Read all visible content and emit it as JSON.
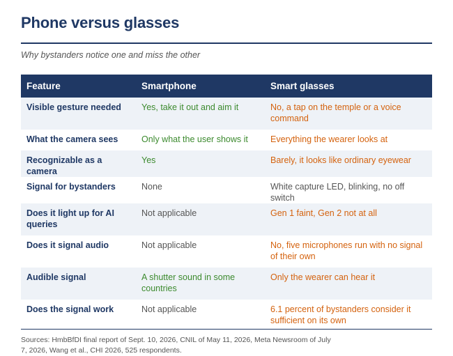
{
  "title": "Phone versus glasses",
  "subtitle": "Why bystanders notice one and miss the other",
  "table": {
    "headers": [
      "Feature",
      "Smartphone",
      "Smart glasses"
    ],
    "rows": [
      {
        "feature": "Visible gesture needed",
        "smartphone": "Yes, take it out and aim it",
        "smartphone_tone": "green",
        "glasses": "No, a tap on the temple or a voice command",
        "glasses_tone": "orange"
      },
      {
        "feature": "What the camera sees",
        "smartphone": "Only what the user shows it",
        "smartphone_tone": "green",
        "glasses": "Everything the wearer looks at",
        "glasses_tone": "orange"
      },
      {
        "feature": "Recognizable as a camera",
        "smartphone": "Yes",
        "smartphone_tone": "green",
        "glasses": "Barely, it looks like ordinary eyewear",
        "glasses_tone": "orange"
      },
      {
        "feature": "Signal for bystanders",
        "smartphone": "None",
        "smartphone_tone": "gray",
        "glasses": "White capture LED, blinking, no off switch",
        "glasses_tone": "gray"
      },
      {
        "feature": "Does it light up for AI queries",
        "smartphone": "Not applicable",
        "smartphone_tone": "gray",
        "glasses": "Gen 1 faint, Gen 2 not at all",
        "glasses_tone": "orange"
      },
      {
        "feature": "Does it signal audio",
        "smartphone": "Not applicable",
        "smartphone_tone": "gray",
        "glasses": "No, five microphones run with no signal of their own",
        "glasses_tone": "orange"
      },
      {
        "feature": "Audible signal",
        "smartphone": "A shutter sound in some countries",
        "smartphone_tone": "green",
        "glasses": "Only the wearer can hear it",
        "glasses_tone": "orange"
      },
      {
        "feature": "Does the signal work",
        "smartphone": "Not applicable",
        "smartphone_tone": "gray",
        "glasses": "6.1 percent of bystanders consider it sufficient on its own",
        "glasses_tone": "orange"
      }
    ]
  },
  "sources": "Sources: HmbBfDI final report of Sept. 10, 2026, CNIL of May 11, 2026, Meta Newsroom of July 7, 2026, Wang et al., CHI 2026, 525 respondents.",
  "colors": {
    "navy": "#1f3864",
    "green": "#3c8a2e",
    "orange": "#d4620e",
    "gray": "#555555",
    "row_shade": "#eef2f7"
  }
}
